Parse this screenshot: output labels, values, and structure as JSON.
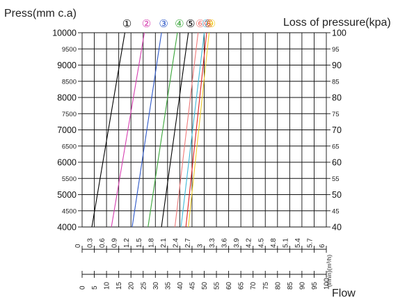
{
  "chart_data": {
    "type": "line",
    "y_left": {
      "label": "Press(mm c.a)",
      "range": [
        4000,
        10000
      ],
      "ticks": [
        4000,
        4500,
        5000,
        5500,
        6000,
        6500,
        7000,
        7500,
        8000,
        8500,
        9000,
        9500,
        10000
      ]
    },
    "y_right": {
      "label": "Loss of pressure(kpa)",
      "range": [
        40,
        100
      ],
      "ticks": [
        40,
        45,
        50,
        55,
        60,
        65,
        70,
        75,
        80,
        85,
        90,
        95,
        100
      ]
    },
    "x_upper": {
      "unit_label": "(l/min)(m³/h)",
      "range": [
        0,
        6
      ],
      "ticks": [
        "0",
        "0.3",
        "0.6",
        "0.9",
        "1.2",
        "1.5",
        "1.8",
        "2.1",
        "2.4",
        "2.7",
        "3",
        "3.3",
        "3.6",
        "3.9",
        "4.2",
        "4.5",
        "4.8",
        "5.1",
        "5.4",
        "5.7",
        "6"
      ]
    },
    "x_lower": {
      "label": "Flow",
      "range": [
        0,
        100
      ],
      "ticks": [
        "0",
        "5",
        "10",
        "15",
        "20",
        "25",
        "30",
        "35",
        "40",
        "45",
        "50",
        "55",
        "60",
        "65",
        "70",
        "75",
        "80",
        "85",
        "90",
        "95",
        "100"
      ]
    },
    "grid": true,
    "series": [
      {
        "name": "①",
        "color": "#000000",
        "x": [
          0.24,
          1.05
        ],
        "y": [
          4000,
          10000
        ]
      },
      {
        "name": "②",
        "color": "#d63fb0",
        "x": [
          0.72,
          1.53
        ],
        "y": [
          4000,
          10000
        ]
      },
      {
        "name": "③",
        "color": "#2d58c8",
        "x": [
          1.23,
          1.95
        ],
        "y": [
          4000,
          10000
        ]
      },
      {
        "name": "④",
        "color": "#3aa63a",
        "x": [
          1.62,
          2.34
        ],
        "y": [
          4000,
          10000
        ]
      },
      {
        "name": "⑤",
        "color": "#000000",
        "x": [
          1.95,
          2.61
        ],
        "y": [
          4000,
          10000
        ]
      },
      {
        "name": "⑥",
        "color": "#f07a7a",
        "x": [
          2.28,
          2.85
        ],
        "y": [
          4000,
          10000
        ]
      },
      {
        "name": "⑦",
        "color": "#3fb8d8",
        "x": [
          2.43,
          3.0
        ],
        "y": [
          4000,
          10000
        ]
      },
      {
        "name": "⑧",
        "color": "#e02020",
        "x": [
          2.55,
          3.06
        ],
        "y": [
          4000,
          10000
        ]
      },
      {
        "name": "⑨",
        "color": "#f0cc2a",
        "x": [
          2.61,
          3.12
        ],
        "y": [
          4000,
          10000
        ]
      }
    ]
  }
}
